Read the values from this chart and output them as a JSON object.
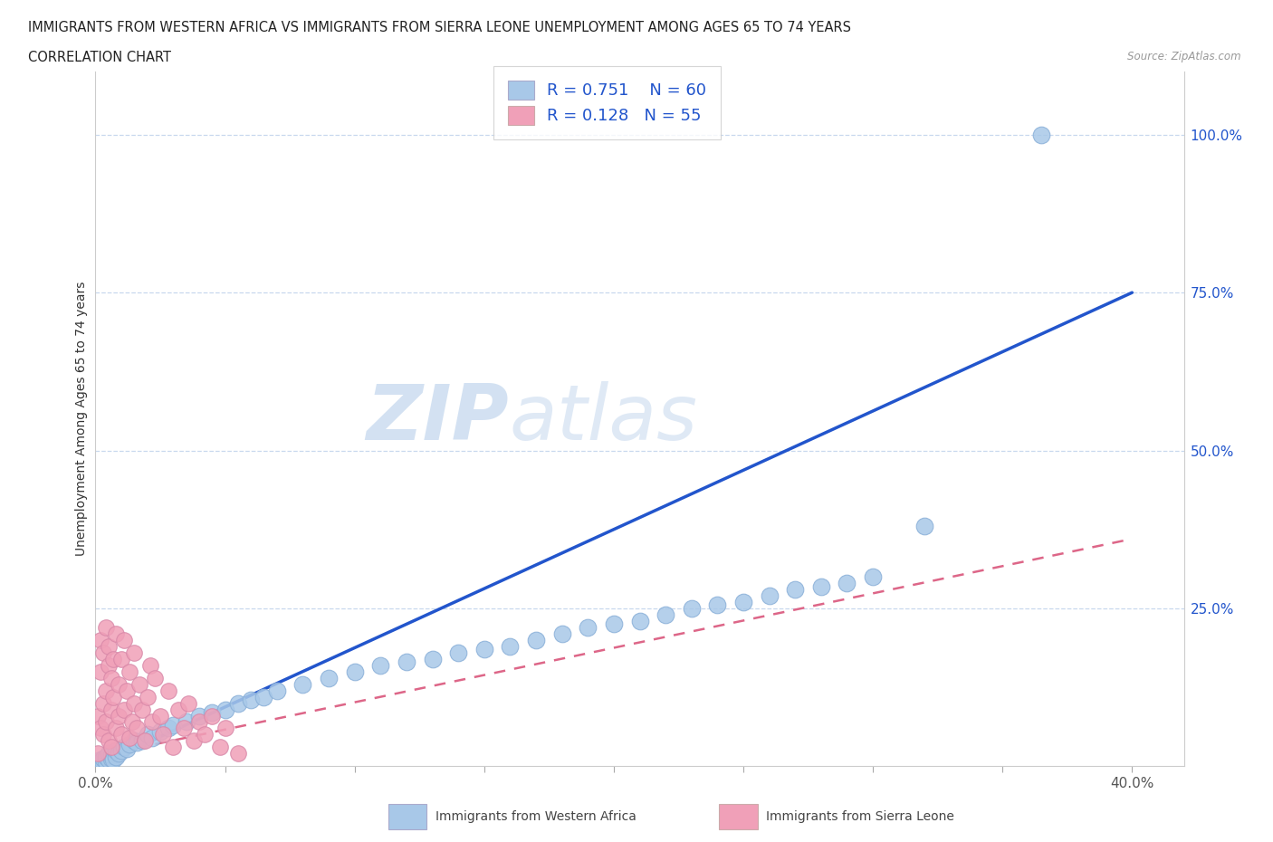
{
  "title_line1": "IMMIGRANTS FROM WESTERN AFRICA VS IMMIGRANTS FROM SIERRA LEONE UNEMPLOYMENT AMONG AGES 65 TO 74 YEARS",
  "title_line2": "CORRELATION CHART",
  "source_text": "Source: ZipAtlas.com",
  "ylabel": "Unemployment Among Ages 65 to 74 years",
  "xlim": [
    0.0,
    0.42
  ],
  "ylim": [
    0.0,
    1.1
  ],
  "xtick_values": [
    0.0,
    0.05,
    0.1,
    0.15,
    0.2,
    0.25,
    0.3,
    0.35,
    0.4
  ],
  "xtick_labels_show": [
    "0.0%",
    "",
    "",
    "",
    "",
    "",
    "",
    "",
    "40.0%"
  ],
  "ytick_values": [
    0.25,
    0.5,
    0.75,
    1.0
  ],
  "ytick_labels": [
    "25.0%",
    "50.0%",
    "75.0%",
    "100.0%"
  ],
  "legend_r1": "R = 0.751",
  "legend_n1": "N = 60",
  "legend_r2": "R = 0.128",
  "legend_n2": "N = 55",
  "color_blue": "#a8c8e8",
  "color_pink": "#f0a0b8",
  "color_blue_line": "#2255cc",
  "color_pink_line": "#dd6688",
  "color_blue_text": "#2255cc",
  "background_color": "#ffffff",
  "grid_color": "#c8d8ee",
  "blue_line_x": [
    0.0,
    0.4
  ],
  "blue_line_y": [
    0.0,
    0.75
  ],
  "pink_line_x": [
    0.0,
    0.4
  ],
  "pink_line_y": [
    0.015,
    0.36
  ],
  "wa_x": [
    0.001,
    0.002,
    0.002,
    0.003,
    0.003,
    0.004,
    0.004,
    0.005,
    0.005,
    0.006,
    0.006,
    0.007,
    0.008,
    0.008,
    0.009,
    0.01,
    0.011,
    0.012,
    0.013,
    0.015,
    0.016,
    0.018,
    0.02,
    0.022,
    0.025,
    0.028,
    0.03,
    0.035,
    0.04,
    0.045,
    0.05,
    0.055,
    0.06,
    0.065,
    0.07,
    0.08,
    0.09,
    0.1,
    0.11,
    0.12,
    0.13,
    0.14,
    0.15,
    0.16,
    0.17,
    0.18,
    0.19,
    0.2,
    0.21,
    0.22,
    0.23,
    0.24,
    0.25,
    0.26,
    0.27,
    0.28,
    0.29,
    0.3,
    0.32,
    0.365
  ],
  "wa_y": [
    0.005,
    0.01,
    0.008,
    0.005,
    0.012,
    0.008,
    0.015,
    0.01,
    0.02,
    0.012,
    0.018,
    0.01,
    0.015,
    0.025,
    0.02,
    0.025,
    0.03,
    0.028,
    0.035,
    0.04,
    0.038,
    0.04,
    0.05,
    0.045,
    0.055,
    0.06,
    0.065,
    0.07,
    0.08,
    0.085,
    0.09,
    0.1,
    0.105,
    0.11,
    0.12,
    0.13,
    0.14,
    0.15,
    0.16,
    0.165,
    0.17,
    0.18,
    0.185,
    0.19,
    0.2,
    0.21,
    0.22,
    0.225,
    0.23,
    0.24,
    0.25,
    0.255,
    0.26,
    0.27,
    0.28,
    0.285,
    0.29,
    0.3,
    0.38,
    1.0
  ],
  "sl_x": [
    0.001,
    0.001,
    0.002,
    0.002,
    0.002,
    0.003,
    0.003,
    0.003,
    0.004,
    0.004,
    0.004,
    0.005,
    0.005,
    0.005,
    0.006,
    0.006,
    0.006,
    0.007,
    0.007,
    0.008,
    0.008,
    0.009,
    0.009,
    0.01,
    0.01,
    0.011,
    0.011,
    0.012,
    0.013,
    0.013,
    0.014,
    0.015,
    0.015,
    0.016,
    0.017,
    0.018,
    0.019,
    0.02,
    0.021,
    0.022,
    0.023,
    0.025,
    0.026,
    0.028,
    0.03,
    0.032,
    0.034,
    0.036,
    0.038,
    0.04,
    0.042,
    0.045,
    0.048,
    0.05,
    0.055
  ],
  "sl_y": [
    0.02,
    0.08,
    0.15,
    0.06,
    0.2,
    0.1,
    0.18,
    0.05,
    0.12,
    0.22,
    0.07,
    0.16,
    0.04,
    0.19,
    0.09,
    0.14,
    0.03,
    0.17,
    0.11,
    0.06,
    0.21,
    0.13,
    0.08,
    0.05,
    0.17,
    0.09,
    0.2,
    0.12,
    0.045,
    0.15,
    0.07,
    0.1,
    0.18,
    0.06,
    0.13,
    0.09,
    0.04,
    0.11,
    0.16,
    0.07,
    0.14,
    0.08,
    0.05,
    0.12,
    0.03,
    0.09,
    0.06,
    0.1,
    0.04,
    0.07,
    0.05,
    0.08,
    0.03,
    0.06,
    0.02
  ]
}
